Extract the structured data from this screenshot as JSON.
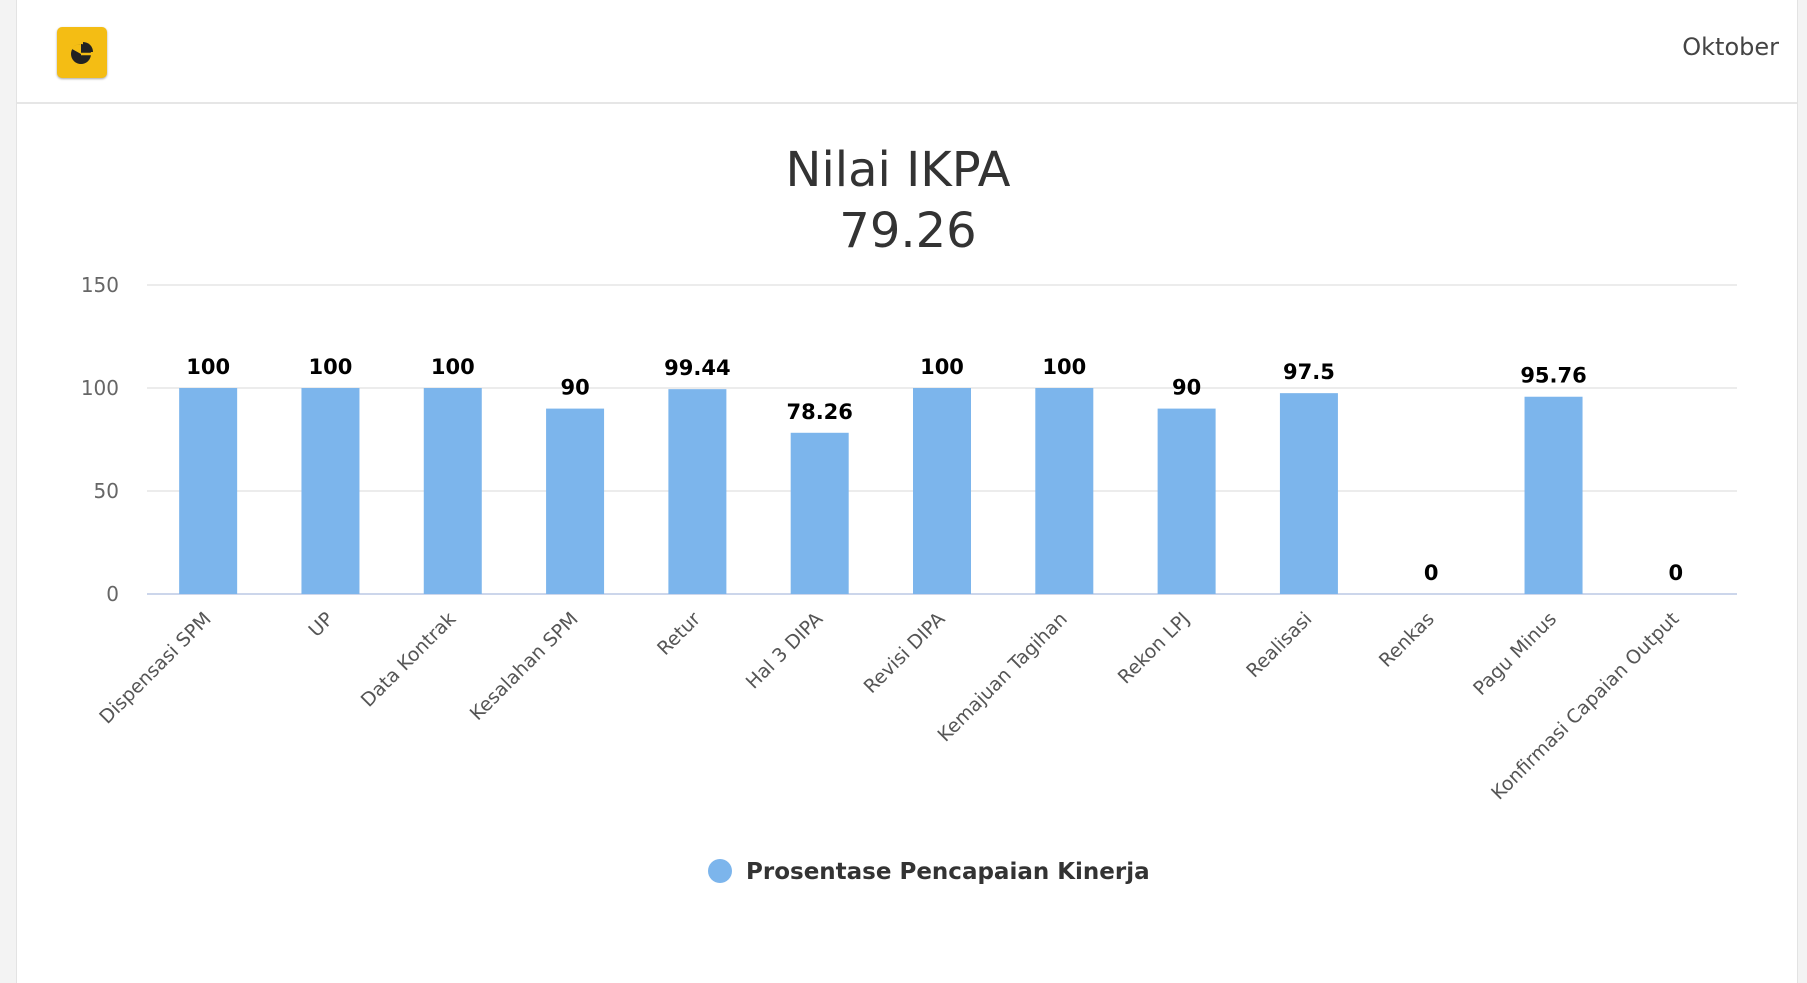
{
  "header": {
    "icon": "pie-chart-icon",
    "month": "Oktober"
  },
  "colors": {
    "bar": "#7cb5ec",
    "icon_button": "#f4bd14",
    "grid": "#e6e6e6"
  },
  "chart_data": {
    "type": "bar",
    "title_line1": "Nilai IKPA",
    "title_line2": "79.26",
    "categories": [
      "Dispensasi SPM",
      "UP",
      "Data Kontrak",
      "Kesalahan SPM",
      "Retur",
      "Hal 3 DIPA",
      "Revisi DIPA",
      "Kemajuan Tagihan",
      "Rekon LPJ",
      "Realisasi",
      "Renkas",
      "Pagu Minus",
      "Konfirmasi Capaian Output"
    ],
    "series": [
      {
        "name": "Prosentase Pencapaian Kinerja",
        "values": [
          100,
          100,
          100,
          90,
          99.44,
          78.26,
          100,
          100,
          90,
          97.5,
          0,
          95.76,
          0
        ]
      }
    ],
    "data_labels": [
      "100",
      "100",
      "100",
      "90",
      "99.44",
      "78.26",
      "100",
      "100",
      "90",
      "97.5",
      "0",
      "95.76",
      "0"
    ],
    "yticks": [
      0,
      50,
      100,
      150
    ],
    "ylim": [
      0,
      150
    ],
    "grid": true,
    "legend_position": "bottom"
  }
}
